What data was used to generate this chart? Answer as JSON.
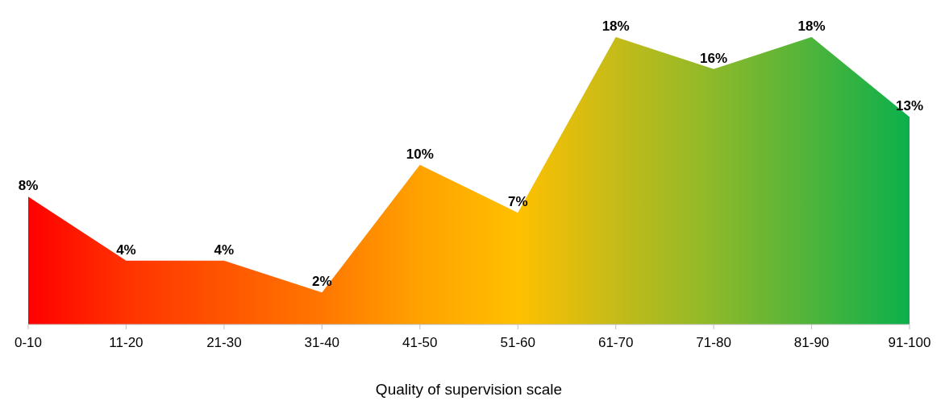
{
  "chart_data": {
    "type": "area",
    "xlabel": "Quality of supervision scale",
    "categories": [
      "0-10",
      "11-20",
      "21-30",
      "31-40",
      "41-50",
      "51-60",
      "61-70",
      "71-80",
      "81-90",
      "91-100"
    ],
    "values": [
      8,
      4,
      4,
      2,
      10,
      7,
      18,
      16,
      18,
      13
    ],
    "value_labels": [
      "8%",
      "4%",
      "4%",
      "2%",
      "10%",
      "7%",
      "18%",
      "16%",
      "18%",
      "13%"
    ],
    "colors": [
      "#ff0000",
      "#ff3300",
      "#ff5500",
      "#ff7700",
      "#ffa200",
      "#ffc000",
      "#c5bb19",
      "#8cb92a",
      "#4eb43b",
      "#0bb04b"
    ],
    "grid": false,
    "legend": false
  }
}
